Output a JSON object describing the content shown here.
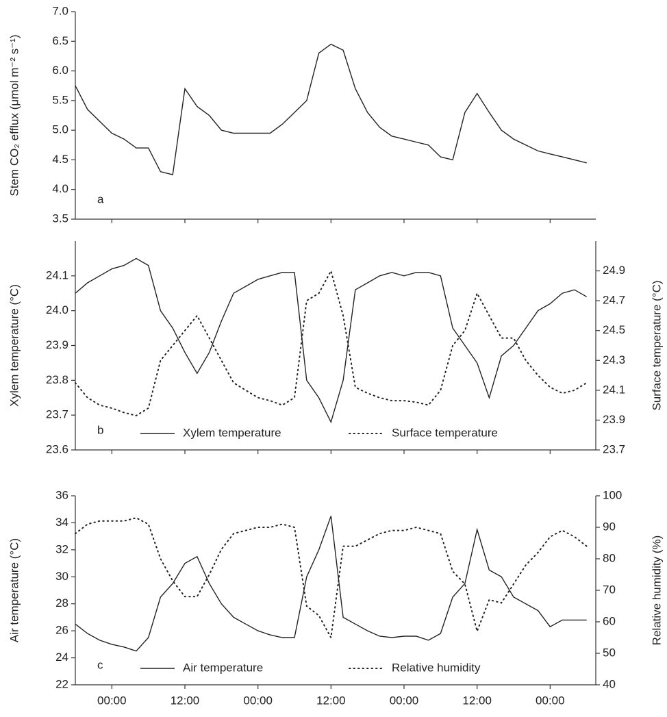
{
  "chart_data": [
    {
      "type": "line",
      "label": "a",
      "ylabel": "Stem CO₂ efflux (μmol m⁻² s⁻¹)",
      "x": [
        -6,
        -4,
        -2,
        0,
        2,
        4,
        6,
        8,
        10,
        12,
        14,
        16,
        18,
        20,
        22,
        24,
        26,
        28,
        30,
        32,
        34,
        36,
        38,
        40,
        42,
        44,
        46,
        48,
        50,
        52,
        54,
        56,
        58,
        60,
        62,
        64,
        66,
        68,
        70,
        72,
        74,
        76,
        78
      ],
      "series": [
        {
          "color": "#222222",
          "style": "solid",
          "values": [
            5.75,
            5.35,
            5.15,
            4.95,
            4.85,
            4.7,
            4.7,
            4.3,
            4.25,
            5.7,
            5.4,
            5.25,
            5.0,
            4.95,
            4.95,
            4.95,
            4.95,
            5.1,
            5.3,
            5.5,
            6.3,
            6.45,
            6.35,
            5.7,
            5.3,
            5.05,
            4.9,
            4.85,
            4.8,
            4.75,
            4.55,
            4.5,
            5.3,
            5.62,
            5.3,
            5.0,
            4.85,
            4.75,
            4.65,
            4.6,
            4.55,
            4.5,
            4.45
          ]
        }
      ],
      "xlim": [
        -6,
        79.5
      ],
      "ylim": [
        3.5,
        7.0
      ],
      "yticks": [
        3.5,
        {
          "value": 4,
          "label": "4.0"
        },
        4.5,
        {
          "value": 5,
          "label": "5.0"
        },
        5.5,
        {
          "value": 6,
          "label": "6.0"
        },
        6.5,
        {
          "value": 7,
          "label": "7.0"
        }
      ]
    },
    {
      "type": "line",
      "label": "b",
      "ylabel": "Xylem temperature (°C)",
      "y2label": "Surface temperature (°C)",
      "legend": "bottom",
      "x": [
        -6,
        -4,
        -2,
        0,
        2,
        4,
        6,
        8,
        10,
        12,
        14,
        16,
        18,
        20,
        22,
        24,
        26,
        28,
        30,
        32,
        34,
        36,
        38,
        40,
        42,
        44,
        46,
        48,
        50,
        52,
        54,
        56,
        58,
        60,
        62,
        64,
        66,
        68,
        70,
        72,
        74,
        76,
        78
      ],
      "series": [
        {
          "name": "Xylem temperature",
          "color": "#222222",
          "style": "solid",
          "values": [
            24.05,
            24.08,
            24.1,
            24.12,
            24.13,
            24.15,
            24.13,
            24.0,
            23.95,
            23.88,
            23.82,
            23.88,
            23.97,
            24.05,
            24.07,
            24.09,
            24.1,
            24.11,
            24.11,
            23.8,
            23.75,
            23.68,
            23.8,
            24.06,
            24.08,
            24.1,
            24.11,
            24.1,
            24.11,
            24.11,
            24.1,
            23.95,
            23.9,
            23.85,
            23.75,
            23.87,
            23.9,
            23.95,
            24.0,
            24.02,
            24.05,
            24.06,
            24.04
          ]
        },
        {
          "name": "Surface temperature",
          "color": "#222222",
          "style": "dotted",
          "axis": "y2",
          "values": [
            24.15,
            24.05,
            24.0,
            23.98,
            23.95,
            23.93,
            23.98,
            24.3,
            24.4,
            24.5,
            24.6,
            24.45,
            24.3,
            24.15,
            24.1,
            24.05,
            24.03,
            24.0,
            24.05,
            24.7,
            24.75,
            24.9,
            24.6,
            24.12,
            24.08,
            24.05,
            24.03,
            24.03,
            24.02,
            24.0,
            24.1,
            24.4,
            24.5,
            24.75,
            24.6,
            24.45,
            24.45,
            24.3,
            24.2,
            24.12,
            24.08,
            24.1,
            24.15
          ]
        }
      ],
      "xlim": [
        -6,
        79.5
      ],
      "ylim": [
        23.6,
        24.2
      ],
      "yticks": [
        23.6,
        23.7,
        23.8,
        23.9,
        {
          "value": 24,
          "label": "24.0"
        },
        24.1
      ],
      "y2lim": [
        23.7,
        25.1
      ],
      "y2ticks": [
        23.7,
        23.9,
        24.1,
        24.3,
        24.5,
        24.7,
        24.9
      ]
    },
    {
      "type": "line",
      "label": "c",
      "ylabel": "Air temperature (°C)",
      "y2label": "Relative humidity (%)",
      "legend": "bottom",
      "x": [
        -6,
        -4,
        -2,
        0,
        2,
        4,
        6,
        8,
        10,
        12,
        14,
        16,
        18,
        20,
        22,
        24,
        26,
        28,
        30,
        32,
        34,
        36,
        38,
        40,
        42,
        44,
        46,
        48,
        50,
        52,
        54,
        56,
        58,
        60,
        62,
        64,
        66,
        68,
        70,
        72,
        74,
        76,
        78
      ],
      "series": [
        {
          "name": "Air temperature",
          "color": "#222222",
          "style": "solid",
          "values": [
            26.5,
            25.8,
            25.3,
            25.0,
            24.8,
            24.5,
            25.5,
            28.5,
            29.5,
            31,
            31.5,
            29.5,
            28,
            27,
            26.5,
            26,
            25.7,
            25.5,
            25.5,
            30,
            32,
            34.5,
            27,
            26.5,
            26,
            25.6,
            25.5,
            25.6,
            25.6,
            25.3,
            25.8,
            28.5,
            29.5,
            33.5,
            30.5,
            30,
            28.5,
            28,
            27.5,
            26.3,
            26.8,
            26.8,
            26.8
          ]
        },
        {
          "name": "Relative humidity",
          "color": "#222222",
          "style": "dotted",
          "axis": "y2",
          "values": [
            88,
            91,
            92,
            92,
            92,
            93,
            91,
            80,
            73,
            68,
            68,
            75,
            83,
            88,
            89,
            90,
            90,
            91,
            90,
            65,
            62,
            55,
            84,
            84,
            86,
            88,
            89,
            89,
            90,
            89,
            88,
            76,
            72,
            57,
            67,
            66,
            72,
            78,
            82,
            87,
            89,
            87,
            84
          ]
        }
      ],
      "xlim": [
        -6,
        79.5
      ],
      "xticks": [
        {
          "value": 0,
          "label": "00:00"
        },
        {
          "value": 12,
          "label": "12:00"
        },
        {
          "value": 24,
          "label": "00:00"
        },
        {
          "value": 36,
          "label": "12:00"
        },
        {
          "value": 48,
          "label": "00:00"
        },
        {
          "value": 60,
          "label": "12:00"
        },
        {
          "value": 72,
          "label": "00:00"
        }
      ],
      "ylim": [
        22,
        36
      ],
      "yticks": [
        22,
        24,
        26,
        28,
        30,
        32,
        34,
        36
      ],
      "y2lim": [
        40,
        100
      ],
      "y2ticks": [
        40,
        50,
        60,
        70,
        80,
        90,
        100
      ]
    }
  ]
}
